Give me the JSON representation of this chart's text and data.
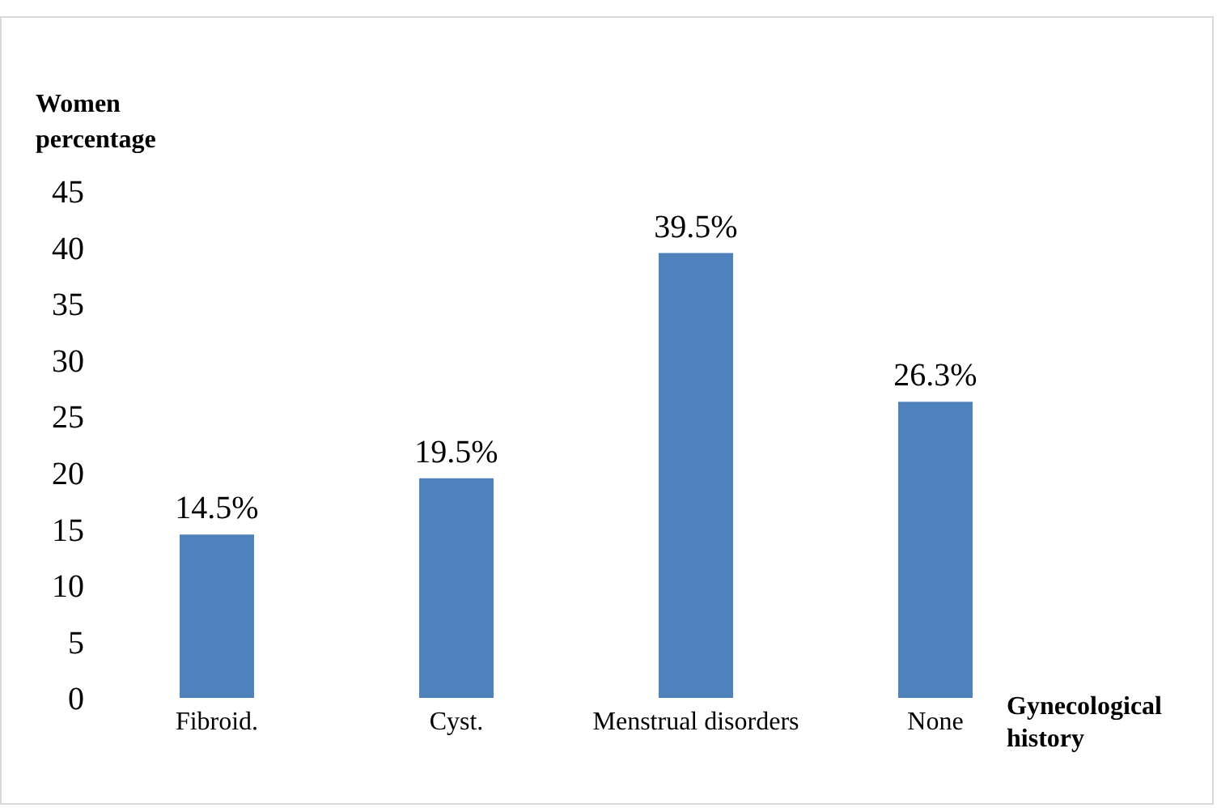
{
  "chart_data": {
    "type": "bar",
    "ylabel": "Women percentage",
    "xlabel": "Gynecological history",
    "categories": [
      "Fibroid.",
      "Cyst.",
      "Menstrual disorders",
      "None"
    ],
    "values": [
      14.5,
      19.5,
      39.5,
      26.3
    ],
    "value_labels": [
      "14.5%",
      "19.5%",
      "39.5%",
      "26.3%"
    ],
    "color": "#4f81bd",
    "ylim": [
      0,
      45
    ],
    "yticks": [
      0,
      5,
      10,
      15,
      20,
      25,
      30,
      35,
      40,
      45
    ],
    "grid": false,
    "legend": false
  }
}
